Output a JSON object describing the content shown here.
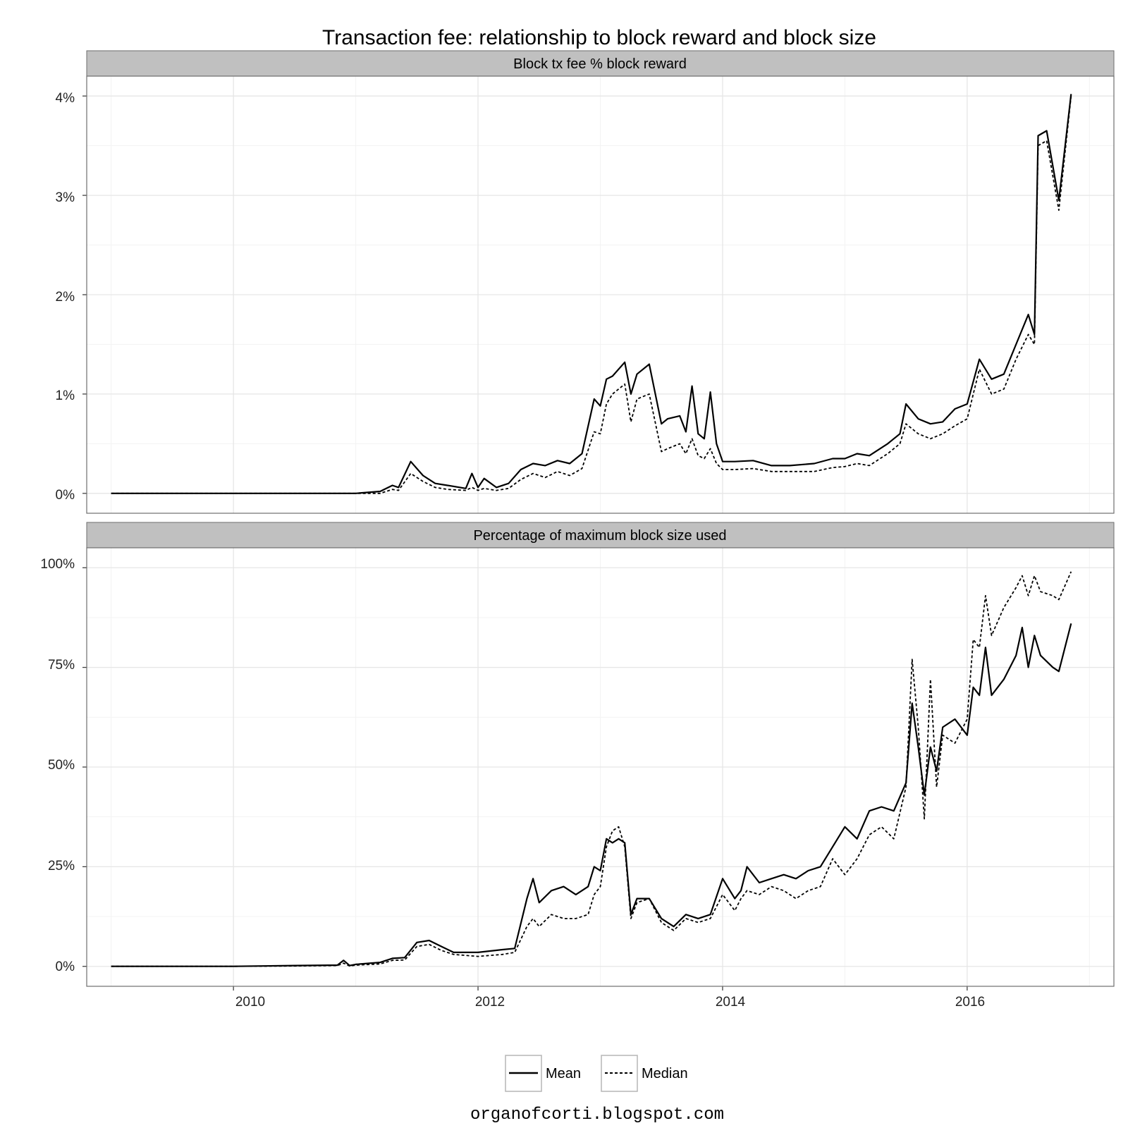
{
  "title": "Transaction fee: relationship to block reward and block size",
  "credit": "organofcorti.blogspot.com",
  "colors": {
    "strip_bg": "#c0c0c0",
    "grid_major": "#e6e6e6",
    "grid_minor": "#f3f3f3",
    "line": "#000000",
    "panel_border": "#6e6e6e"
  },
  "legend": {
    "placement": "bottom",
    "items": [
      {
        "label": "Mean",
        "style": "solid"
      },
      {
        "label": "Median",
        "style": "dashed"
      }
    ]
  },
  "chart_data": [
    {
      "type": "line",
      "panel": "top",
      "strip_label": "Block tx fee % block reward",
      "xlim": [
        2008.8,
        2017.2
      ],
      "ylim": [
        -0.2,
        4.2
      ],
      "x_ticks": [
        2010,
        2012,
        2014,
        2016
      ],
      "y_ticks": [
        0,
        1,
        2,
        3,
        4
      ],
      "y_tick_labels": [
        "0%",
        "1%",
        "2%",
        "3%",
        "4%"
      ],
      "grid": true,
      "series": [
        {
          "name": "Mean",
          "style": "solid",
          "x": [
            2009.0,
            2009.5,
            2010.0,
            2010.4,
            2010.6,
            2011.0,
            2011.2,
            2011.3,
            2011.35,
            2011.45,
            2011.55,
            2011.65,
            2011.75,
            2011.9,
            2011.95,
            2012.0,
            2012.05,
            2012.15,
            2012.25,
            2012.35,
            2012.45,
            2012.55,
            2012.65,
            2012.75,
            2012.85,
            2012.95,
            2013.0,
            2013.05,
            2013.1,
            2013.2,
            2013.25,
            2013.3,
            2013.4,
            2013.5,
            2013.55,
            2013.65,
            2013.7,
            2013.75,
            2013.8,
            2013.85,
            2013.9,
            2013.95,
            2014.0,
            2014.1,
            2014.25,
            2014.4,
            2014.55,
            2014.75,
            2014.9,
            2015.0,
            2015.1,
            2015.2,
            2015.35,
            2015.45,
            2015.5,
            2015.6,
            2015.7,
            2015.8,
            2015.9,
            2016.0,
            2016.1,
            2016.2,
            2016.3,
            2016.4,
            2016.5,
            2016.55,
            2016.58,
            2016.65,
            2016.75,
            2016.85
          ],
          "y": [
            0,
            0,
            0,
            0,
            0,
            0,
            0.02,
            0.08,
            0.06,
            0.32,
            0.18,
            0.1,
            0.08,
            0.05,
            0.2,
            0.06,
            0.15,
            0.06,
            0.1,
            0.24,
            0.3,
            0.28,
            0.33,
            0.3,
            0.4,
            0.95,
            0.88,
            1.15,
            1.18,
            1.32,
            1.0,
            1.2,
            1.3,
            0.7,
            0.75,
            0.78,
            0.62,
            1.08,
            0.6,
            0.55,
            1.02,
            0.5,
            0.32,
            0.32,
            0.33,
            0.28,
            0.28,
            0.3,
            0.35,
            0.35,
            0.4,
            0.38,
            0.5,
            0.6,
            0.9,
            0.75,
            0.7,
            0.72,
            0.85,
            0.9,
            1.35,
            1.15,
            1.2,
            1.5,
            1.8,
            1.6,
            3.6,
            3.65,
            2.95,
            4.02
          ]
        },
        {
          "name": "Median",
          "style": "dashed",
          "x": [
            2009.0,
            2009.5,
            2010.0,
            2010.4,
            2010.6,
            2011.0,
            2011.2,
            2011.3,
            2011.35,
            2011.45,
            2011.55,
            2011.65,
            2011.75,
            2011.9,
            2011.95,
            2012.0,
            2012.05,
            2012.15,
            2012.25,
            2012.35,
            2012.45,
            2012.55,
            2012.65,
            2012.75,
            2012.85,
            2012.95,
            2013.0,
            2013.05,
            2013.1,
            2013.2,
            2013.25,
            2013.3,
            2013.4,
            2013.5,
            2013.55,
            2013.65,
            2013.7,
            2013.75,
            2013.8,
            2013.85,
            2013.9,
            2013.95,
            2014.0,
            2014.1,
            2014.25,
            2014.4,
            2014.55,
            2014.75,
            2014.9,
            2015.0,
            2015.1,
            2015.2,
            2015.35,
            2015.45,
            2015.5,
            2015.6,
            2015.7,
            2015.8,
            2015.9,
            2016.0,
            2016.1,
            2016.2,
            2016.3,
            2016.4,
            2016.5,
            2016.55,
            2016.58,
            2016.65,
            2016.75,
            2016.85
          ],
          "y": [
            0,
            0,
            0,
            0,
            0,
            0,
            0.0,
            0.04,
            0.03,
            0.2,
            0.12,
            0.06,
            0.04,
            0.03,
            0.06,
            0.03,
            0.05,
            0.03,
            0.05,
            0.14,
            0.2,
            0.16,
            0.22,
            0.18,
            0.25,
            0.62,
            0.6,
            0.9,
            1.0,
            1.1,
            0.72,
            0.95,
            1.0,
            0.42,
            0.45,
            0.5,
            0.4,
            0.55,
            0.38,
            0.35,
            0.45,
            0.3,
            0.24,
            0.24,
            0.25,
            0.22,
            0.22,
            0.22,
            0.26,
            0.27,
            0.3,
            0.28,
            0.4,
            0.5,
            0.7,
            0.6,
            0.55,
            0.6,
            0.68,
            0.75,
            1.25,
            1.0,
            1.05,
            1.35,
            1.6,
            1.5,
            3.5,
            3.55,
            2.85,
            4.0
          ]
        }
      ]
    },
    {
      "type": "line",
      "panel": "bottom",
      "strip_label": "Percentage of maximum block size used",
      "xlim": [
        2008.8,
        2017.2
      ],
      "ylim": [
        -5,
        105
      ],
      "x_ticks": [
        2010,
        2012,
        2014,
        2016
      ],
      "x_tick_labels": [
        "2010",
        "2012",
        "2014",
        "2016"
      ],
      "y_ticks": [
        0,
        25,
        50,
        75,
        100
      ],
      "y_tick_labels": [
        "0%",
        "25%",
        "50%",
        "75%",
        "100%"
      ],
      "grid": true,
      "series": [
        {
          "name": "Mean",
          "style": "solid",
          "x": [
            2009.0,
            2009.5,
            2010.0,
            2010.5,
            2010.85,
            2010.9,
            2010.95,
            2011.0,
            2011.2,
            2011.3,
            2011.4,
            2011.5,
            2011.6,
            2011.7,
            2011.8,
            2012.0,
            2012.2,
            2012.3,
            2012.4,
            2012.45,
            2012.5,
            2012.6,
            2012.7,
            2012.8,
            2012.9,
            2012.95,
            2013.0,
            2013.05,
            2013.1,
            2013.15,
            2013.2,
            2013.25,
            2013.3,
            2013.4,
            2013.5,
            2013.6,
            2013.7,
            2013.8,
            2013.9,
            2014.0,
            2014.1,
            2014.15,
            2014.2,
            2014.3,
            2014.4,
            2014.5,
            2014.6,
            2014.7,
            2014.8,
            2014.9,
            2015.0,
            2015.1,
            2015.2,
            2015.3,
            2015.4,
            2015.5,
            2015.55,
            2015.6,
            2015.65,
            2015.7,
            2015.75,
            2015.8,
            2015.9,
            2016.0,
            2016.05,
            2016.1,
            2016.15,
            2016.2,
            2016.3,
            2016.4,
            2016.45,
            2016.5,
            2016.55,
            2016.6,
            2016.7,
            2016.75,
            2016.85
          ],
          "y": [
            0,
            0,
            0,
            0.2,
            0.3,
            1.5,
            0.2,
            0.5,
            1.0,
            2.0,
            2.2,
            6.0,
            6.5,
            5.0,
            3.5,
            3.5,
            4.2,
            4.5,
            17,
            22,
            16,
            19,
            20,
            18,
            20,
            25,
            24,
            32,
            31,
            32,
            31,
            13,
            17,
            17,
            12,
            10,
            13,
            12,
            13,
            22,
            17,
            19,
            25,
            21,
            22,
            23,
            22,
            24,
            25,
            30,
            35,
            32,
            39,
            40,
            39,
            46,
            66,
            55,
            43,
            55,
            49,
            60,
            62,
            58,
            70,
            68,
            80,
            68,
            72,
            78,
            85,
            75,
            83,
            78,
            75,
            74,
            86
          ]
        },
        {
          "name": "Median",
          "style": "dashed",
          "x": [
            2009.0,
            2009.5,
            2010.0,
            2010.5,
            2010.85,
            2010.9,
            2010.95,
            2011.0,
            2011.2,
            2011.3,
            2011.4,
            2011.5,
            2011.6,
            2011.7,
            2011.8,
            2012.0,
            2012.2,
            2012.3,
            2012.4,
            2012.45,
            2012.5,
            2012.6,
            2012.7,
            2012.8,
            2012.9,
            2012.95,
            2013.0,
            2013.05,
            2013.1,
            2013.15,
            2013.2,
            2013.25,
            2013.3,
            2013.4,
            2013.5,
            2013.6,
            2013.7,
            2013.8,
            2013.9,
            2014.0,
            2014.1,
            2014.15,
            2014.2,
            2014.3,
            2014.4,
            2014.5,
            2014.6,
            2014.7,
            2014.8,
            2014.9,
            2015.0,
            2015.1,
            2015.2,
            2015.3,
            2015.4,
            2015.5,
            2015.55,
            2015.6,
            2015.65,
            2015.7,
            2015.75,
            2015.8,
            2015.9,
            2016.0,
            2016.05,
            2016.1,
            2016.15,
            2016.2,
            2016.3,
            2016.4,
            2016.45,
            2016.5,
            2016.55,
            2016.6,
            2016.7,
            2016.75,
            2016.85
          ],
          "y": [
            0,
            0,
            0,
            0.1,
            0.2,
            0.8,
            0.1,
            0.3,
            0.6,
            1.5,
            1.6,
            5.0,
            5.5,
            4.0,
            3.0,
            2.5,
            3.0,
            3.5,
            10,
            12,
            10,
            13,
            12,
            12,
            13,
            18,
            20,
            30,
            34,
            35,
            30,
            12,
            16,
            17,
            11,
            9,
            12,
            11,
            12,
            18,
            14,
            17,
            19,
            18,
            20,
            19,
            17,
            19,
            20,
            27,
            23,
            27,
            33,
            35,
            32,
            45,
            77,
            60,
            37,
            72,
            45,
            58,
            56,
            62,
            82,
            80,
            93,
            83,
            90,
            95,
            98,
            93,
            98,
            94,
            93,
            92,
            99
          ]
        }
      ]
    }
  ]
}
